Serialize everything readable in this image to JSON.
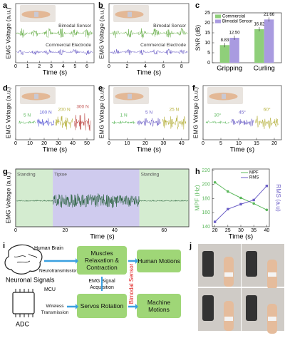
{
  "panels": [
    {
      "label": "a",
      "type": "emg",
      "mode": "stacked",
      "ylabel": "EMG Voltage (a.u.)",
      "xlabel": "Time (s)",
      "xlim": [
        0,
        6.6
      ],
      "xticks": [
        0,
        1,
        2,
        3,
        4,
        5,
        6
      ],
      "traces": [
        {
          "label": "Bimodal Sensor",
          "color": "#6ab04c"
        },
        {
          "label": "Commercial Electrode",
          "color": "#6c5fc7"
        }
      ]
    },
    {
      "label": "b",
      "type": "emg",
      "mode": "stacked",
      "ylabel": "EMG Voltage (a.u.)",
      "xlabel": "Time (s)",
      "xlim": [
        0,
        8.8
      ],
      "xticks": [
        0,
        2,
        4,
        6,
        8
      ],
      "traces": [
        {
          "label": "Bimodal Sensor",
          "color": "#6ab04c"
        },
        {
          "label": "Commercial Electrode",
          "color": "#6c5fc7"
        }
      ]
    },
    {
      "label": "c",
      "type": "bar",
      "ylabel": "SNR (dB)",
      "ylim": [
        0,
        25
      ],
      "yticks": [
        0,
        5,
        10,
        15,
        20,
        25
      ],
      "categories": [
        "Gripping",
        "Curling"
      ],
      "series": [
        {
          "name": "Commercial",
          "color": "#8fcf7a",
          "values": [
            8.83,
            16.82
          ],
          "value_labels": [
            "8.83",
            "16.82"
          ]
        },
        {
          "name": "Bimodal Sensor",
          "color": "#a99be0",
          "values": [
            12.5,
            21.66
          ],
          "value_labels": [
            "12.50",
            "21.66"
          ]
        }
      ]
    },
    {
      "label": "d",
      "type": "emg",
      "mode": "segments",
      "ylabel": "EMG Voltage (a.u.)",
      "xlabel": "Time (s)",
      "xlim": [
        0,
        55
      ],
      "xticks": [
        0,
        10,
        20,
        30,
        40,
        50
      ],
      "traces": [
        {
          "label": "5 N",
          "color": "#5cb85c"
        },
        {
          "label": "100 N",
          "color": "#5b5bd6"
        },
        {
          "label": "200 N",
          "color": "#b5b03a"
        },
        {
          "label": "300 N",
          "color": "#c0504d"
        }
      ]
    },
    {
      "label": "e",
      "type": "emg",
      "mode": "segments",
      "ylabel": "EMG Voltage (a.u.)",
      "xlabel": "Time (s)",
      "xlim": [
        0,
        44
      ],
      "xticks": [
        0,
        10,
        20,
        30,
        40
      ],
      "traces": [
        {
          "label": "1 N",
          "color": "#5cb85c"
        },
        {
          "label": "5 N",
          "color": "#6c5fc7"
        },
        {
          "label": "25 N",
          "color": "#b5b03a"
        }
      ]
    },
    {
      "label": "f",
      "type": "emg",
      "mode": "segments",
      "ylabel": "EMG Voltage (a.u.)",
      "xlabel": "Time (s)",
      "xlim": [
        0,
        22
      ],
      "xticks": [
        0,
        5,
        10,
        15,
        20
      ],
      "traces": [
        {
          "label": "30°",
          "color": "#5cb85c"
        },
        {
          "label": "45°",
          "color": "#6c5fc7"
        },
        {
          "label": "60°",
          "color": "#b5b03a"
        }
      ]
    },
    {
      "label": "g",
      "type": "emg",
      "mode": "regions",
      "ylabel": "EMG Voltage (a.u.)",
      "xlabel": "Time (s)",
      "xlim": [
        0,
        70
      ],
      "xticks": [
        0,
        20,
        40,
        60
      ],
      "traces": [
        {
          "label": "Standing",
          "color": "#d4ecd0",
          "from": 0,
          "to": 15
        },
        {
          "label": "Tiptoe",
          "color": "#cfcbee",
          "from": 15,
          "to": 50
        },
        {
          "label": "Standing",
          "color": "#d4ecd0",
          "from": 50,
          "to": 70
        }
      ]
    },
    {
      "label": "h",
      "type": "line",
      "xlabel": "Time (s)",
      "ylabel": "MPF (Hz)",
      "y2label": "RMS (a.u)",
      "xlim": [
        19,
        41
      ],
      "xticks": [
        20,
        25,
        30,
        35,
        40
      ],
      "ylim": [
        140,
        222
      ],
      "yticks": [
        140,
        160,
        180,
        200,
        220
      ],
      "y2lim": [
        140,
        222
      ],
      "x": [
        20,
        25,
        30,
        35,
        40
      ],
      "series": [
        {
          "name": "MPF",
          "color": "#5cb85c",
          "values": [
            203,
            190,
            181,
            173,
            164
          ]
        },
        {
          "name": "RMS",
          "color": "#6c5fc7",
          "axis": "y2",
          "values": [
            147,
            165,
            172,
            178,
            198
          ]
        }
      ]
    },
    {
      "label": "i",
      "type": "diagram",
      "texts": {
        "brain": "Human Brain",
        "neuro": "Neurotransmission",
        "neuronal": "Neuronal Signals",
        "muscle": "Muscles Relaxation & Contraction",
        "acq": "EMG Signal Acquisition",
        "human": "Human Motions",
        "mcu": "MCU",
        "wireless": "Wireless Transmission",
        "adc": "ADC",
        "servo": "Servos Rotation",
        "machine": "Machine Motions",
        "sensor": "Bimodal Sensor"
      }
    },
    {
      "label": "j",
      "type": "photos"
    }
  ]
}
